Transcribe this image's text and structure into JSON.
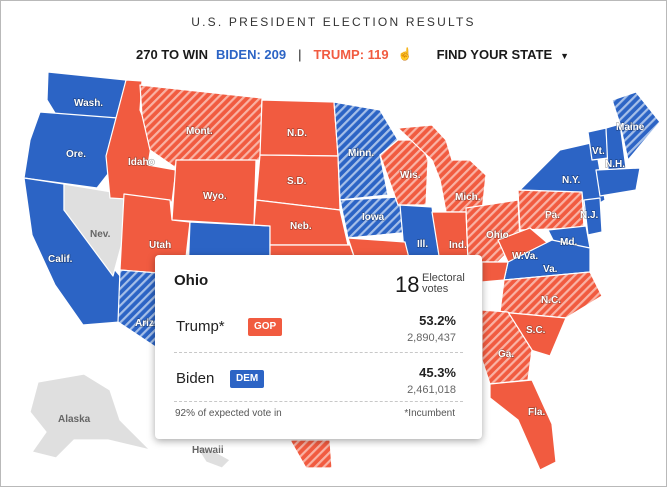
{
  "header": {
    "title": "U.S. PRESIDENT ELECTION RESULTS",
    "to_win": "270 TO WIN",
    "biden": "BIDEN: 209",
    "separator": "|",
    "trump": "TRUMP: 119",
    "find_state": "FIND YOUR STATE"
  },
  "colors": {
    "dem": "#2c64c5",
    "gop": "#f15b40",
    "pending": "#dfdfdf"
  },
  "states": {
    "wash": "Wash.",
    "ore": "Ore.",
    "calif": "Calif.",
    "nev": "Nev.",
    "idaho": "Idaho",
    "mont": "Mont.",
    "wyo": "Wyo.",
    "utah": "Utah",
    "ariz": "Ariz.",
    "nd": "N.D.",
    "sd": "S.D.",
    "neb": "Neb.",
    "minn": "Minn.",
    "iowa": "Iowa",
    "wis": "Wis.",
    "ill": "Ill.",
    "mich": "Mich.",
    "ind": "Ind.",
    "ohio": "Ohio",
    "pa": "Pa.",
    "ny": "N.Y.",
    "vt": "Vt.",
    "nh": "N.H.",
    "maine": "Maine",
    "nj": "N.J.",
    "md": "Md.",
    "wva": "W.Va.",
    "va": "Va.",
    "nc": "N.C.",
    "sc": "S.C.",
    "ga": "Ga.",
    "fla": "Fla.",
    "alaska": "Alaska",
    "hawaii": "Hawaii"
  },
  "popup": {
    "state": "Ohio",
    "electoral_votes": "18",
    "electoral_label": "Electoral votes",
    "candidates": [
      {
        "name": "Trump*",
        "party": "GOP",
        "pct": "53.2%",
        "votes": "2,890,437"
      },
      {
        "name": "Biden",
        "party": "DEM",
        "pct": "45.3%",
        "votes": "2,461,018"
      }
    ],
    "expected_vote": "92% of expected vote in",
    "footnote": "*Incumbent"
  }
}
